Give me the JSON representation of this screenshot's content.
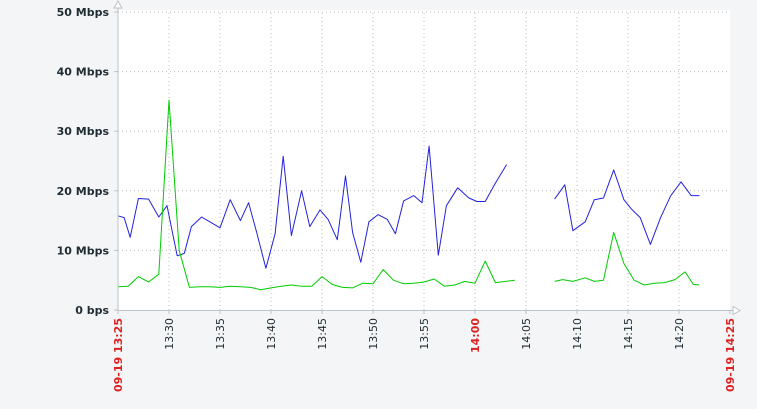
{
  "chart_data": {
    "type": "line",
    "title": "",
    "xlabel": "",
    "ylabel": "",
    "ylim": [
      0,
      50
    ],
    "y_ticks": [
      {
        "value": 0,
        "label": "0 bps"
      },
      {
        "value": 10,
        "label": "10 Mbps"
      },
      {
        "value": 20,
        "label": "20 Mbps"
      },
      {
        "value": 30,
        "label": "30 Mbps"
      },
      {
        "value": 40,
        "label": "40 Mbps"
      },
      {
        "value": 50,
        "label": "50 Mbps"
      }
    ],
    "x_ticks": [
      {
        "label": "09-19 13:25",
        "minute": 0,
        "highlight": true
      },
      {
        "label": "13:30",
        "minute": 5,
        "highlight": false
      },
      {
        "label": "13:35",
        "minute": 10,
        "highlight": false
      },
      {
        "label": "13:40",
        "minute": 15,
        "highlight": false
      },
      {
        "label": "13:45",
        "minute": 20,
        "highlight": false
      },
      {
        "label": "13:50",
        "minute": 25,
        "highlight": false
      },
      {
        "label": "13:55",
        "minute": 30,
        "highlight": false
      },
      {
        "label": "14:00",
        "minute": 35,
        "highlight": true
      },
      {
        "label": "14:05",
        "minute": 40,
        "highlight": false
      },
      {
        "label": "14:10",
        "minute": 45,
        "highlight": false
      },
      {
        "label": "14:15",
        "minute": 50,
        "highlight": false
      },
      {
        "label": "14:20",
        "minute": 55,
        "highlight": false
      },
      {
        "label": "09-19 14:25",
        "minute": 60,
        "highlight": true
      }
    ],
    "grid": true,
    "series": [
      {
        "color": "#2222dd",
        "segments": [
          [
            [
              0,
              15.8
            ],
            [
              0.6,
              15.5
            ],
            [
              1.2,
              12.2
            ],
            [
              2,
              18.7
            ],
            [
              3,
              18.6
            ],
            [
              4,
              15.6
            ],
            [
              4.8,
              17.5
            ],
            [
              5.8,
              9.1
            ],
            [
              6.5,
              9.5
            ],
            [
              7.2,
              14
            ],
            [
              8.2,
              15.6
            ],
            [
              9,
              14.8
            ],
            [
              10,
              13.8
            ],
            [
              11,
              18.5
            ],
            [
              12,
              15
            ],
            [
              12.8,
              18
            ],
            [
              13.6,
              13
            ],
            [
              14.5,
              7
            ],
            [
              15.4,
              12.8
            ],
            [
              16.2,
              25.8
            ],
            [
              17,
              12.5
            ],
            [
              18,
              20
            ],
            [
              18.8,
              14
            ],
            [
              19.8,
              16.8
            ],
            [
              20.6,
              15.2
            ],
            [
              21.5,
              11.8
            ],
            [
              22.3,
              22.5
            ],
            [
              23,
              13
            ],
            [
              23.8,
              8
            ],
            [
              24.6,
              14.8
            ],
            [
              25.5,
              16
            ],
            [
              26.4,
              15.2
            ],
            [
              27.2,
              12.8
            ],
            [
              28,
              18.3
            ],
            [
              29,
              19.2
            ],
            [
              29.8,
              18
            ],
            [
              30.5,
              27.5
            ],
            [
              31.4,
              9.2
            ],
            [
              32.2,
              17.5
            ],
            [
              33.3,
              20.5
            ],
            [
              34.4,
              18.8
            ],
            [
              35.2,
              18.2
            ],
            [
              36,
              18.2
            ],
            [
              37,
              21.3
            ],
            [
              38.1,
              24.4
            ]
          ],
          [
            [
              42.8,
              18.6
            ],
            [
              43.8,
              21
            ],
            [
              44.6,
              13.3
            ],
            [
              45.8,
              14.8
            ],
            [
              46.7,
              18.5
            ],
            [
              47.6,
              18.8
            ],
            [
              48.6,
              23.5
            ],
            [
              49.6,
              18.5
            ],
            [
              50.3,
              17
            ],
            [
              51.2,
              15.5
            ],
            [
              52.2,
              11
            ],
            [
              53.2,
              15.5
            ],
            [
              54.2,
              19.2
            ],
            [
              55.2,
              21.5
            ],
            [
              56.2,
              19.2
            ],
            [
              57,
              19.2
            ]
          ]
        ]
      },
      {
        "color": "#00cc00",
        "segments": [
          [
            [
              0,
              3.9
            ],
            [
              1,
              4
            ],
            [
              2,
              5.6
            ],
            [
              3,
              4.7
            ],
            [
              4,
              6
            ],
            [
              5,
              35.2
            ],
            [
              6,
              10
            ],
            [
              7,
              3.8
            ],
            [
              8,
              3.9
            ],
            [
              9,
              3.9
            ],
            [
              10,
              3.8
            ],
            [
              11,
              4
            ],
            [
              12,
              3.9
            ],
            [
              13,
              3.8
            ],
            [
              14,
              3.4
            ],
            [
              15,
              3.7
            ],
            [
              16,
              4
            ],
            [
              17,
              4.2
            ],
            [
              18,
              4
            ],
            [
              19,
              4
            ],
            [
              20,
              5.6
            ],
            [
              21,
              4.3
            ],
            [
              22,
              3.8
            ],
            [
              23,
              3.7
            ],
            [
              24,
              4.5
            ],
            [
              25,
              4.4
            ],
            [
              26,
              6.8
            ],
            [
              27,
              5
            ],
            [
              28,
              4.4
            ],
            [
              29,
              4.5
            ],
            [
              30,
              4.7
            ],
            [
              31,
              5.2
            ],
            [
              32,
              4
            ],
            [
              33,
              4.2
            ],
            [
              34,
              4.8
            ],
            [
              35,
              4.5
            ],
            [
              36,
              8.2
            ],
            [
              37,
              4.6
            ],
            [
              38,
              4.8
            ],
            [
              38.9,
              5
            ]
          ],
          [
            [
              42.8,
              4.8
            ],
            [
              43.6,
              5.1
            ],
            [
              44.6,
              4.8
            ],
            [
              45.8,
              5.4
            ],
            [
              46.7,
              4.8
            ],
            [
              47.6,
              5
            ],
            [
              48.6,
              13
            ],
            [
              49.6,
              7.8
            ],
            [
              50.6,
              5
            ],
            [
              51.6,
              4.2
            ],
            [
              52.6,
              4.5
            ],
            [
              53.6,
              4.6
            ],
            [
              54.6,
              5.1
            ],
            [
              55.6,
              6.4
            ],
            [
              56.4,
              4.3
            ],
            [
              57,
              4.2
            ]
          ]
        ]
      }
    ]
  }
}
